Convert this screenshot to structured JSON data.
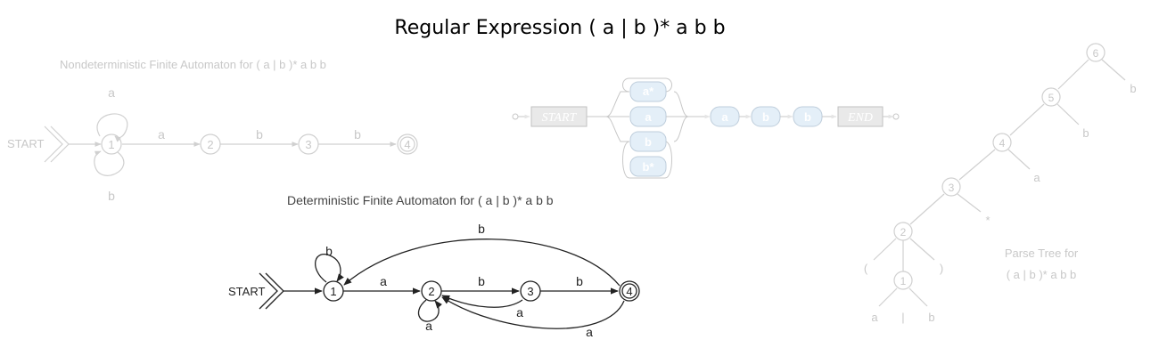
{
  "title": "Regular Expression ( a | b )* a b b",
  "nfa": {
    "caption": "Nondeterministic Finite Automaton for  ( a | b )* a b b",
    "start_label": "START",
    "states": [
      "1",
      "2",
      "3",
      "4"
    ],
    "edge_labels": {
      "loop_top": "a",
      "loop_bottom": "b",
      "e12": "a",
      "e23": "b",
      "e34": "b"
    }
  },
  "railroad": {
    "start_label": "START",
    "end_label": "END",
    "branch_tokens": [
      "a*",
      "a",
      "b",
      "b*"
    ],
    "sequence_tokens": [
      "a",
      "b",
      "b"
    ]
  },
  "dfa": {
    "caption": "Deterministic Finite Automaton for  ( a | b )* a b b",
    "start_label": "START",
    "states": [
      "1",
      "2",
      "3",
      "4"
    ],
    "edge_labels": {
      "loop1": "b",
      "e12": "a",
      "loop2": "a",
      "e23": "b",
      "e32": "a",
      "e34": "b",
      "e41": "b",
      "e42": "a"
    }
  },
  "parse_tree": {
    "caption_line1": "Parse Tree for",
    "caption_line2": "( a | b )* a b b",
    "nodes": [
      "1",
      "2",
      "3",
      "4",
      "5",
      "6"
    ],
    "leaves": {
      "b6": "b",
      "b5": "b",
      "a4": "a",
      "star3": "*",
      "lparen": "(",
      "rparen": ")",
      "a1": "a",
      "bar1": "|",
      "b1": "b"
    }
  },
  "colors": {
    "faint": "#d0d0d0",
    "dark": "#222222",
    "railroad_box": "#c8c8c8",
    "railroad_token": "#cfe3f4"
  }
}
